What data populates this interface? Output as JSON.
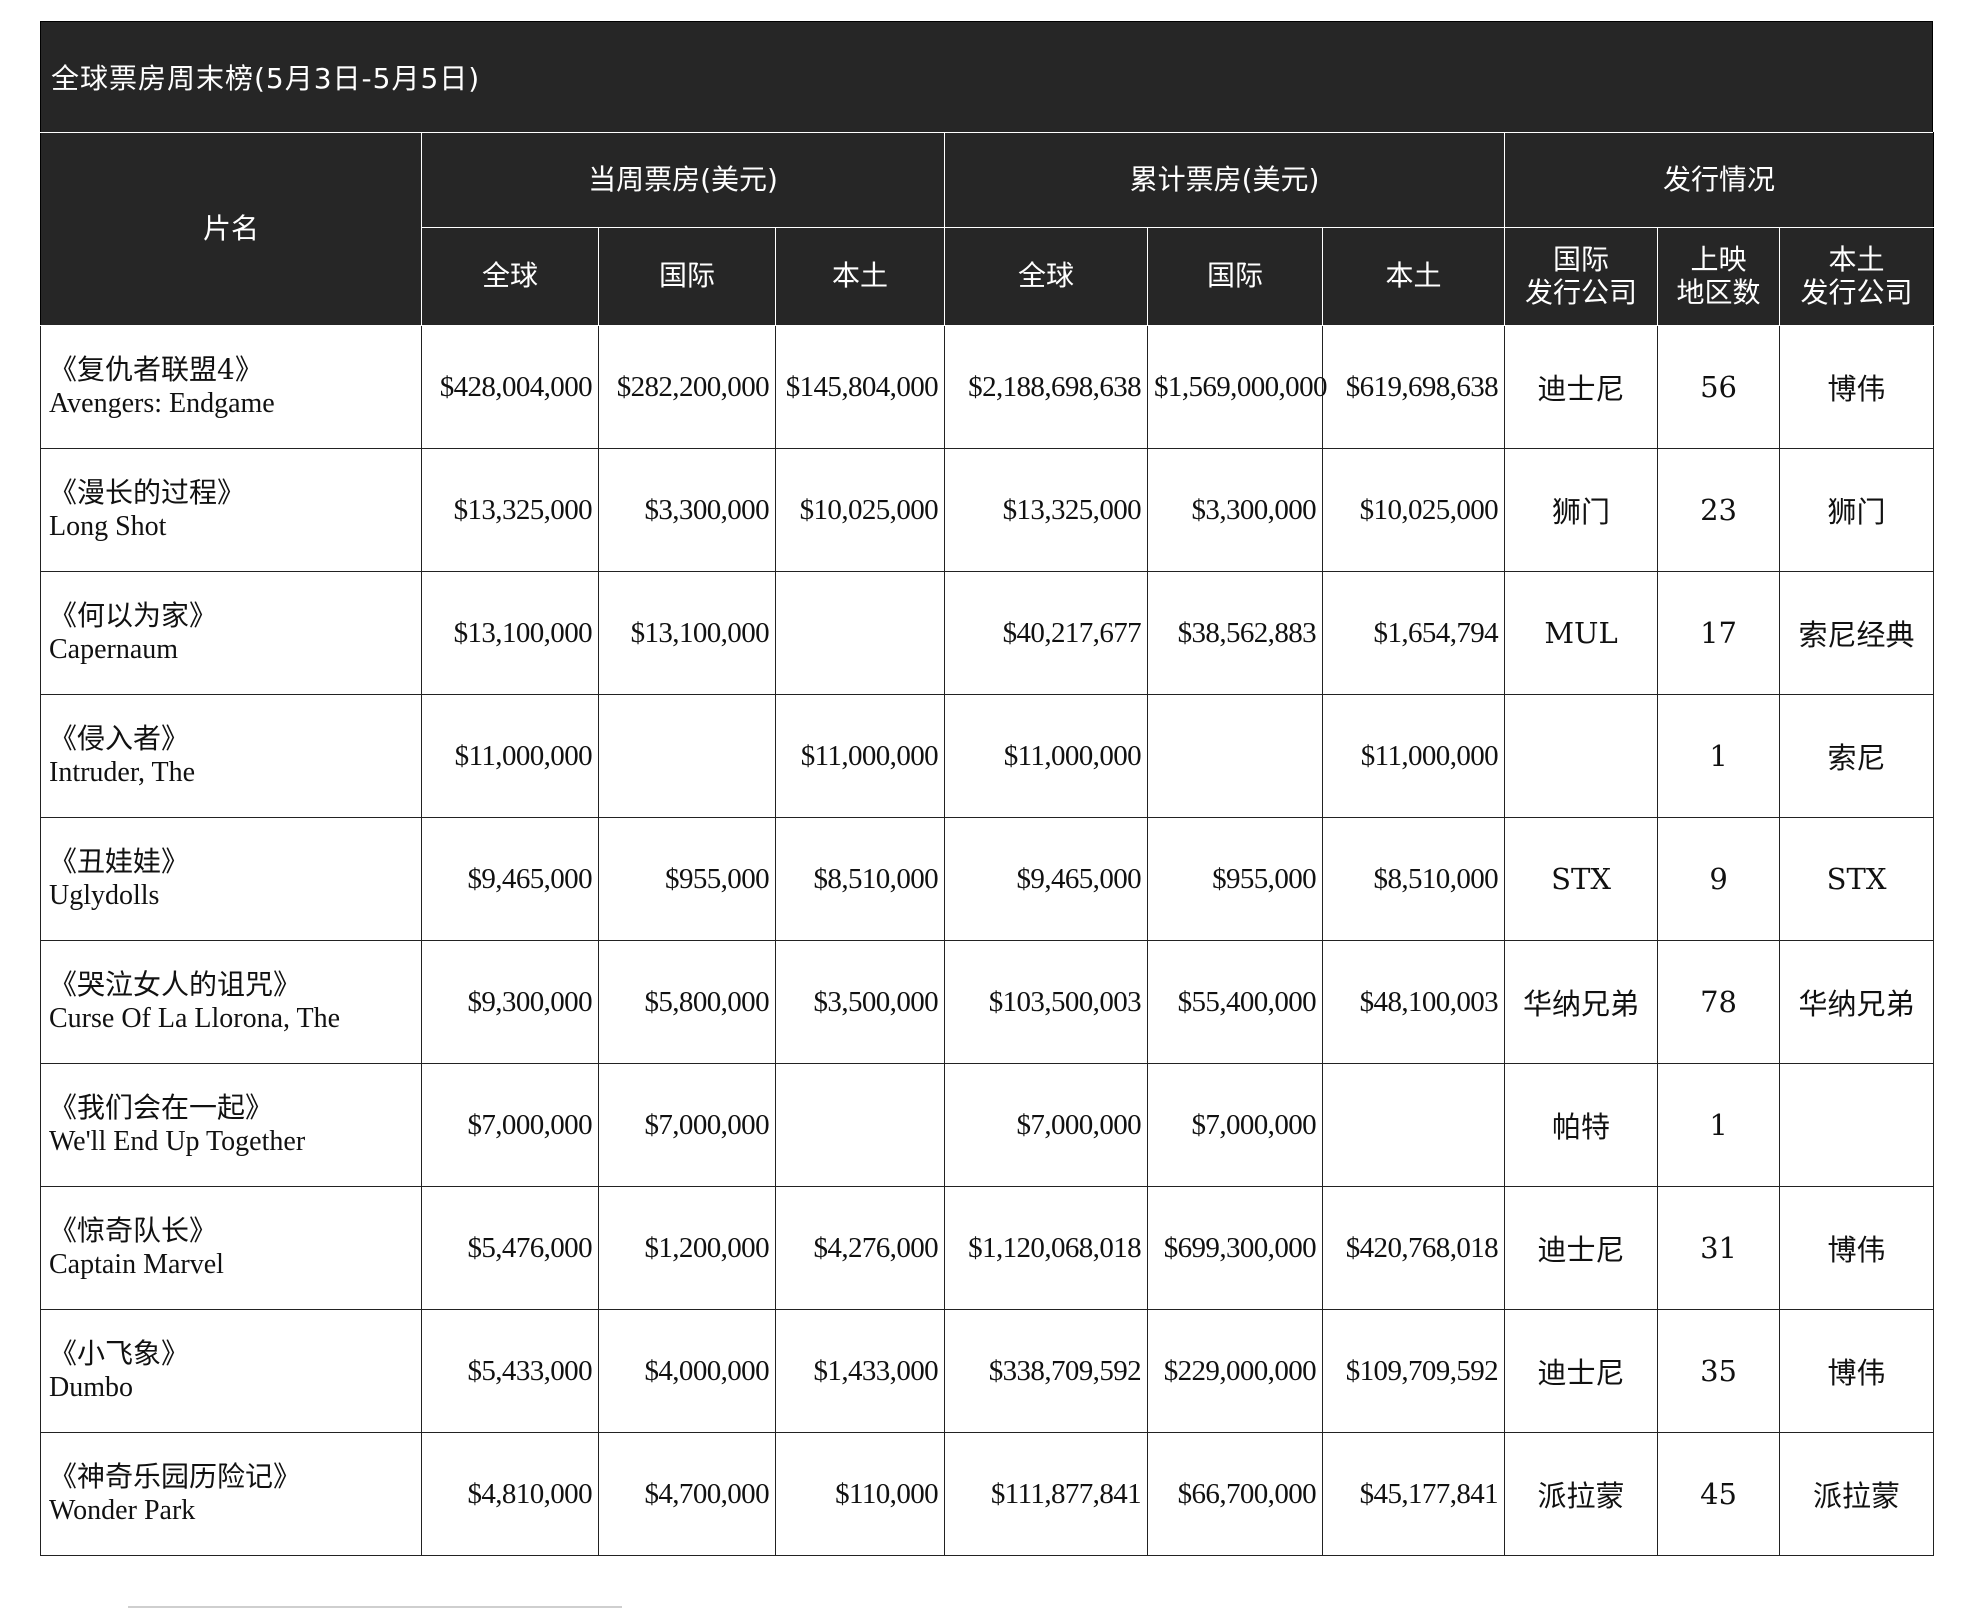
{
  "title": "全球票房周末榜(5月3日-5月5日)",
  "header": {
    "film": "片名",
    "weekly_group": "当周票房(美元)",
    "cumulative_group": "累计票房(美元)",
    "release_group": "发行情况",
    "global": "全球",
    "intl": "国际",
    "domestic": "本土",
    "intl_distributor": "国际\n发行公司",
    "markets": "上映\n地区数",
    "domestic_distributor": "本土\n发行公司"
  },
  "rows": [
    {
      "cn": "《复仇者联盟4》",
      "en": "Avengers: Endgame",
      "w_global": "$428,004,000",
      "w_intl": "$282,200,000",
      "w_dom": "$145,804,000",
      "c_global": "$2,188,698,638",
      "c_intl": "$1,569,000,000",
      "c_dom": "$619,698,638",
      "intl_dist": "迪士尼",
      "markets": "56",
      "dom_dist": "博伟"
    },
    {
      "cn": "《漫长的过程》",
      "en": "Long Shot",
      "w_global": "$13,325,000",
      "w_intl": "$3,300,000",
      "w_dom": "$10,025,000",
      "c_global": "$13,325,000",
      "c_intl": "$3,300,000",
      "c_dom": "$10,025,000",
      "intl_dist": "狮门",
      "markets": "23",
      "dom_dist": "狮门"
    },
    {
      "cn": "《何以为家》",
      "en": "Capernaum",
      "w_global": "$13,100,000",
      "w_intl": "$13,100,000",
      "w_dom": "",
      "c_global": "$40,217,677",
      "c_intl": "$38,562,883",
      "c_dom": "$1,654,794",
      "intl_dist": "MUL",
      "markets": "17",
      "dom_dist": "索尼经典"
    },
    {
      "cn": "《侵入者》",
      "en": "Intruder, The",
      "w_global": "$11,000,000",
      "w_intl": "",
      "w_dom": "$11,000,000",
      "c_global": "$11,000,000",
      "c_intl": "",
      "c_dom": "$11,000,000",
      "intl_dist": "",
      "markets": "1",
      "dom_dist": "索尼"
    },
    {
      "cn": "《丑娃娃》",
      "en": "Uglydolls",
      "w_global": "$9,465,000",
      "w_intl": "$955,000",
      "w_dom": "$8,510,000",
      "c_global": "$9,465,000",
      "c_intl": "$955,000",
      "c_dom": "$8,510,000",
      "intl_dist": "STX",
      "markets": "9",
      "dom_dist": "STX"
    },
    {
      "cn": "《哭泣女人的诅咒》",
      "en": "Curse Of La Llorona, The",
      "w_global": "$9,300,000",
      "w_intl": "$5,800,000",
      "w_dom": "$3,500,000",
      "c_global": "$103,500,003",
      "c_intl": "$55,400,000",
      "c_dom": "$48,100,003",
      "intl_dist": "华纳兄弟",
      "markets": "78",
      "dom_dist": "华纳兄弟"
    },
    {
      "cn": "《我们会在一起》",
      "en": "We'll End Up Together",
      "w_global": "$7,000,000",
      "w_intl": "$7,000,000",
      "w_dom": "",
      "c_global": "$7,000,000",
      "c_intl": "$7,000,000",
      "c_dom": "",
      "intl_dist": "帕特",
      "markets": "1",
      "dom_dist": ""
    },
    {
      "cn": "《惊奇队长》",
      "en": "Captain Marvel",
      "w_global": "$5,476,000",
      "w_intl": "$1,200,000",
      "w_dom": "$4,276,000",
      "c_global": "$1,120,068,018",
      "c_intl": "$699,300,000",
      "c_dom": "$420,768,018",
      "intl_dist": "迪士尼",
      "markets": "31",
      "dom_dist": "博伟"
    },
    {
      "cn": "《小飞象》",
      "en": "Dumbo",
      "w_global": "$5,433,000",
      "w_intl": "$4,000,000",
      "w_dom": "$1,433,000",
      "c_global": "$338,709,592",
      "c_intl": "$229,000,000",
      "c_dom": "$109,709,592",
      "intl_dist": "迪士尼",
      "markets": "35",
      "dom_dist": "博伟"
    },
    {
      "cn": "《神奇乐园历险记》",
      "en": "Wonder Park",
      "w_global": "$4,810,000",
      "w_intl": "$4,700,000",
      "w_dom": "$110,000",
      "c_global": "$111,877,841",
      "c_intl": "$66,700,000",
      "c_dom": "$45,177,841",
      "intl_dist": "派拉蒙",
      "markets": "45",
      "dom_dist": "派拉蒙"
    }
  ]
}
